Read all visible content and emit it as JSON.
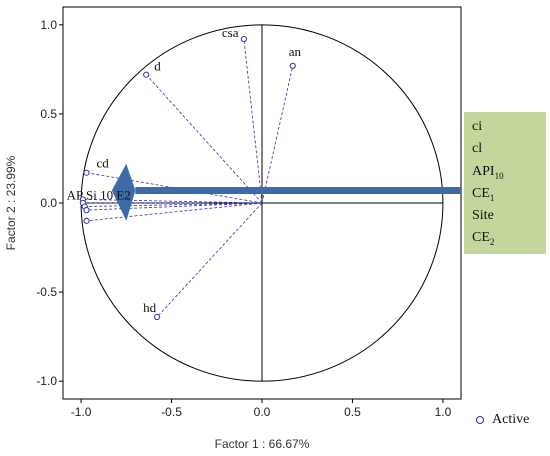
{
  "chart_data": {
    "type": "scatter",
    "xlabel": "Factor 1 : 66.67%",
    "ylabel": "Factor 2 : 23.99%",
    "xlim": [
      -1.1,
      1.1
    ],
    "ylim": [
      -1.1,
      1.1
    ],
    "x_ticks": [
      "-1.0",
      "-0.5",
      "0.0",
      "0.5",
      "1.0"
    ],
    "y_ticks": [
      "1.0",
      "0.5",
      "0.0",
      "-0.5",
      "-1.0"
    ],
    "grid": false,
    "unit_circle": true,
    "points": [
      {
        "label": "csa",
        "x": -0.1,
        "y": 0.92
      },
      {
        "label": "an",
        "x": 0.17,
        "y": 0.77
      },
      {
        "label": "d",
        "x": -0.64,
        "y": 0.72
      },
      {
        "label": "cd",
        "x": -0.97,
        "y": 0.17
      },
      {
        "label": "hd",
        "x": -0.58,
        "y": -0.64
      },
      {
        "label": "",
        "x": -0.99,
        "y": 0.02
      },
      {
        "label": "",
        "x": -0.99,
        "y": 0.0
      },
      {
        "label": "",
        "x": -0.98,
        "y": -0.02
      },
      {
        "label": "",
        "x": -0.97,
        "y": -0.04
      },
      {
        "label": "",
        "x": -0.97,
        "y": -0.1
      }
    ],
    "cluster_label": "AP Si 10 E2",
    "legend": [
      {
        "name": "Active",
        "marker": "circle"
      }
    ],
    "legend_position": "bottom-right",
    "colors": {
      "vector": "#3333aa",
      "arrow": "#3d6ba6",
      "annotation_bg": "#c3d69b"
    }
  },
  "annotation": {
    "lines": [
      {
        "text": "ci",
        "sub": ""
      },
      {
        "text": "cl",
        "sub": ""
      },
      {
        "text": "API",
        "sub": "10"
      },
      {
        "text": "CE",
        "sub": "1"
      },
      {
        "text": "Site",
        "sub": ""
      },
      {
        "text": "CE",
        "sub": "2"
      }
    ]
  }
}
